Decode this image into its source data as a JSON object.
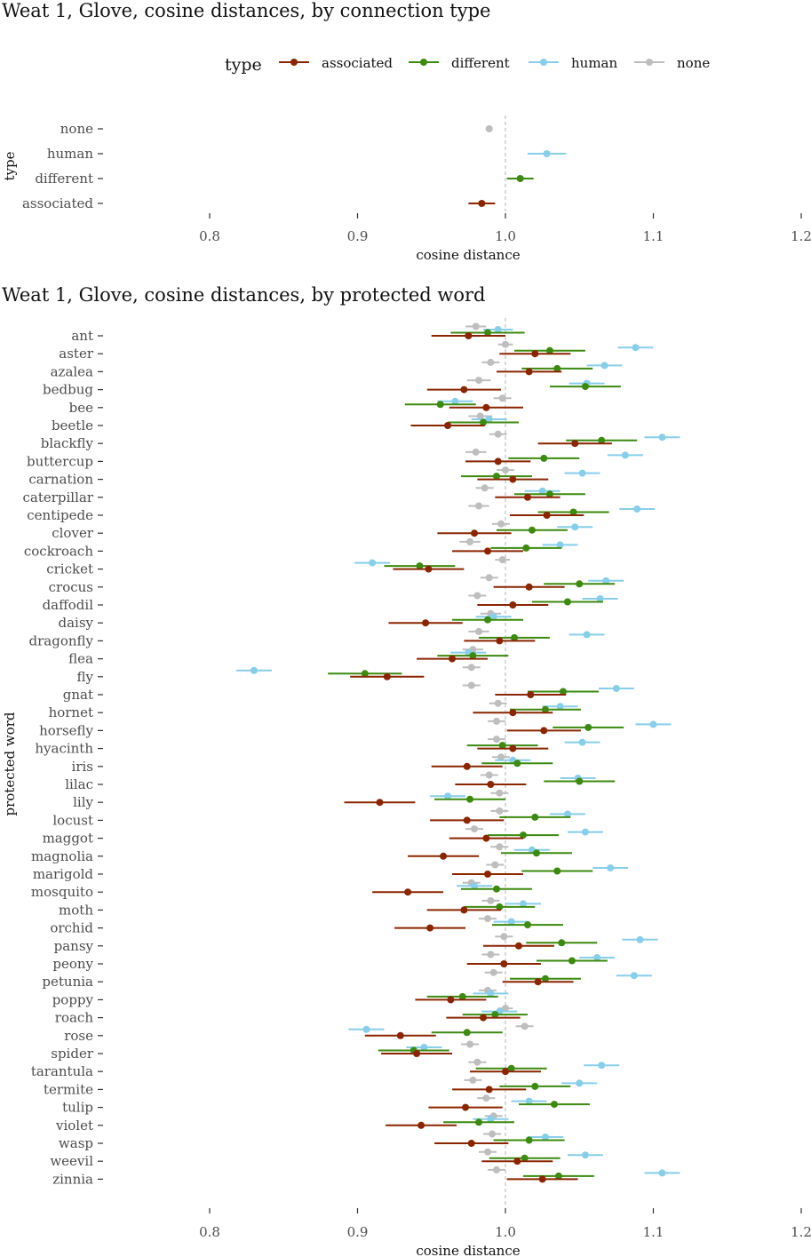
{
  "chart_data": [
    {
      "type": "scatter",
      "title": "Weat 1, Glove,  cosine distances, by connection type",
      "xlabel": "cosine distance",
      "ylabel": "type",
      "xlim": [
        0.8,
        1.2
      ],
      "xticks": [
        "0.8",
        "0.9",
        "1.0",
        "1.1",
        "1.2"
      ],
      "reference_x": 1.0,
      "categories": [
        "none",
        "human",
        "different",
        "associated"
      ],
      "legend": {
        "title": "type",
        "position": "top",
        "labels": [
          "associated",
          "different",
          "human",
          "none"
        ]
      },
      "colors": {
        "associated": "#8B2500",
        "different": "#3C8A0F",
        "human": "#87CEEB",
        "none": "#BEBEBE"
      },
      "series": [
        {
          "name": "none",
          "points": [
            {
              "y": "none",
              "x": 0.989,
              "lo": 0.989,
              "hi": 0.989
            }
          ]
        },
        {
          "name": "human",
          "points": [
            {
              "y": "human",
              "x": 1.028,
              "lo": 1.015,
              "hi": 1.041
            }
          ]
        },
        {
          "name": "different",
          "points": [
            {
              "y": "different",
              "x": 1.01,
              "lo": 1.001,
              "hi": 1.019
            }
          ]
        },
        {
          "name": "associated",
          "points": [
            {
              "y": "associated",
              "x": 0.984,
              "lo": 0.975,
              "hi": 0.993
            }
          ]
        }
      ]
    },
    {
      "type": "scatter",
      "title": "Weat 1, Glove, cosine distances, by protected word",
      "xlabel": "cosine distance",
      "ylabel": "protected word",
      "xlim": [
        0.8,
        1.2
      ],
      "xticks": [
        "0.8",
        "0.9",
        "1.0",
        "1.1",
        "1.2"
      ],
      "reference_x": 1.0,
      "categories": [
        "ant",
        "aster",
        "azalea",
        "bedbug",
        "bee",
        "beetle",
        "blackfly",
        "buttercup",
        "carnation",
        "caterpillar",
        "centipede",
        "clover",
        "cockroach",
        "cricket",
        "crocus",
        "daffodil",
        "daisy",
        "dragonfly",
        "flea",
        "fly",
        "gnat",
        "hornet",
        "horsefly",
        "hyacinth",
        "iris",
        "lilac",
        "lily",
        "locust",
        "maggot",
        "magnolia",
        "marigold",
        "mosquito",
        "moth",
        "orchid",
        "pansy",
        "peony",
        "petunia",
        "poppy",
        "roach",
        "rose",
        "spider",
        "tarantula",
        "termite",
        "tulip",
        "violet",
        "wasp",
        "weevil",
        "zinnia"
      ],
      "series_order": [
        "none",
        "human",
        "different",
        "associated"
      ],
      "series_offsets": [
        -10.5,
        -7,
        -3.5,
        0
      ],
      "colors": {
        "associated": "#8B2500",
        "different": "#3C8A0F",
        "human": "#87CEEB",
        "none": "#BEBEBE"
      },
      "points": [
        [
          [
            0.98,
            0.007
          ],
          [
            0.995,
            0.01
          ],
          [
            0.988,
            0.025
          ],
          [
            0.975,
            0.025
          ]
        ],
        [
          [
            1.0,
            0.005
          ],
          [
            1.088,
            0.012
          ],
          [
            1.03,
            0.024
          ],
          [
            1.02,
            0.024
          ]
        ],
        [
          [
            0.99,
            0.006
          ],
          [
            1.067,
            0.012
          ],
          [
            1.035,
            0.024
          ],
          [
            1.016,
            0.022
          ]
        ],
        [
          [
            0.982,
            0.008
          ],
          [
            1.055,
            0.012
          ],
          [
            1.054,
            0.024
          ],
          [
            0.972,
            0.025
          ]
        ],
        [
          [
            0.998,
            0.006
          ],
          [
            0.966,
            0.012
          ],
          [
            0.956,
            0.024
          ],
          [
            0.987,
            0.025
          ]
        ],
        [
          [
            0.983,
            0.008
          ],
          [
            0.989,
            0.012
          ],
          [
            0.985,
            0.024
          ],
          [
            0.961,
            0.025
          ]
        ],
        [
          [
            0.995,
            0.006
          ],
          [
            1.106,
            0.012
          ],
          [
            1.065,
            0.024
          ],
          [
            1.047,
            0.025
          ]
        ],
        [
          [
            0.98,
            0.007
          ],
          [
            1.081,
            0.012
          ],
          [
            1.026,
            0.024
          ],
          [
            0.995,
            0.022
          ]
        ],
        [
          [
            1.0,
            0.006
          ],
          [
            1.052,
            0.012
          ],
          [
            0.994,
            0.024
          ],
          [
            1.005,
            0.024
          ]
        ],
        [
          [
            0.986,
            0.006
          ],
          [
            1.025,
            0.012
          ],
          [
            1.03,
            0.024
          ],
          [
            1.015,
            0.022
          ]
        ],
        [
          [
            0.982,
            0.007
          ],
          [
            1.089,
            0.012
          ],
          [
            1.046,
            0.024
          ],
          [
            1.028,
            0.025
          ]
        ],
        [
          [
            0.997,
            0.006
          ],
          [
            1.047,
            0.012
          ],
          [
            1.018,
            0.024
          ],
          [
            0.979,
            0.025
          ]
        ],
        [
          [
            0.976,
            0.007
          ],
          [
            1.037,
            0.012
          ],
          [
            1.014,
            0.024
          ],
          [
            0.988,
            0.024
          ]
        ],
        [
          [
            0.998,
            0.005
          ],
          [
            0.91,
            0.012
          ],
          [
            0.942,
            0.024
          ],
          [
            0.948,
            0.024
          ]
        ],
        [
          [
            0.989,
            0.006
          ],
          [
            1.068,
            0.012
          ],
          [
            1.05,
            0.024
          ],
          [
            1.016,
            0.024
          ]
        ],
        [
          [
            0.981,
            0.006
          ],
          [
            1.064,
            0.012
          ],
          [
            1.042,
            0.024
          ],
          [
            1.005,
            0.024
          ]
        ],
        [
          [
            0.99,
            0.007
          ],
          [
            0.992,
            0.012
          ],
          [
            0.988,
            0.024
          ],
          [
            0.946,
            0.025
          ]
        ],
        [
          [
            0.982,
            0.007
          ],
          [
            1.055,
            0.012
          ],
          [
            1.006,
            0.024
          ],
          [
            0.996,
            0.024
          ]
        ],
        [
          [
            0.978,
            0.007
          ],
          [
            0.975,
            0.012
          ],
          [
            0.978,
            0.024
          ],
          [
            0.964,
            0.024
          ]
        ],
        [
          [
            0.977,
            0.006
          ],
          [
            0.83,
            0.012
          ],
          [
            0.905,
            0.025
          ],
          [
            0.92,
            0.025
          ]
        ],
        [
          [
            0.977,
            0.006
          ],
          [
            1.075,
            0.012
          ],
          [
            1.039,
            0.024
          ],
          [
            1.017,
            0.024
          ]
        ],
        [
          [
            0.995,
            0.006
          ],
          [
            1.037,
            0.012
          ],
          [
            1.027,
            0.024
          ],
          [
            1.005,
            0.027
          ]
        ],
        [
          [
            0.994,
            0.006
          ],
          [
            1.1,
            0.012
          ],
          [
            1.056,
            0.024
          ],
          [
            1.026,
            0.025
          ]
        ],
        [
          [
            0.994,
            0.006
          ],
          [
            1.052,
            0.012
          ],
          [
            0.998,
            0.024
          ],
          [
            1.005,
            0.024
          ]
        ],
        [
          [
            0.997,
            0.006
          ],
          [
            1.005,
            0.012
          ],
          [
            1.008,
            0.024
          ],
          [
            0.974,
            0.024
          ]
        ],
        [
          [
            0.989,
            0.006
          ],
          [
            1.049,
            0.012
          ],
          [
            1.05,
            0.024
          ],
          [
            0.99,
            0.024
          ]
        ],
        [
          [
            0.996,
            0.006
          ],
          [
            0.961,
            0.012
          ],
          [
            0.976,
            0.024
          ],
          [
            0.915,
            0.024
          ]
        ],
        [
          [
            0.996,
            0.006
          ],
          [
            1.042,
            0.012
          ],
          [
            1.02,
            0.024
          ],
          [
            0.974,
            0.025
          ]
        ],
        [
          [
            0.979,
            0.006
          ],
          [
            1.054,
            0.012
          ],
          [
            1.012,
            0.024
          ],
          [
            0.987,
            0.025
          ]
        ],
        [
          [
            0.996,
            0.006
          ],
          [
            1.018,
            0.012
          ],
          [
            1.021,
            0.024
          ],
          [
            0.958,
            0.024
          ]
        ],
        [
          [
            0.993,
            0.006
          ],
          [
            1.071,
            0.012
          ],
          [
            1.035,
            0.024
          ],
          [
            0.988,
            0.024
          ]
        ],
        [
          [
            0.977,
            0.006
          ],
          [
            0.979,
            0.012
          ],
          [
            0.994,
            0.024
          ],
          [
            0.934,
            0.024
          ]
        ],
        [
          [
            0.99,
            0.006
          ],
          [
            1.012,
            0.012
          ],
          [
            0.996,
            0.024
          ],
          [
            0.972,
            0.025
          ]
        ],
        [
          [
            0.988,
            0.006
          ],
          [
            1.004,
            0.012
          ],
          [
            1.015,
            0.024
          ],
          [
            0.949,
            0.024
          ]
        ],
        [
          [
            0.999,
            0.006
          ],
          [
            1.091,
            0.012
          ],
          [
            1.038,
            0.024
          ],
          [
            1.009,
            0.024
          ]
        ],
        [
          [
            0.99,
            0.006
          ],
          [
            1.062,
            0.012
          ],
          [
            1.045,
            0.024
          ],
          [
            0.999,
            0.025
          ]
        ],
        [
          [
            0.992,
            0.006
          ],
          [
            1.087,
            0.012
          ],
          [
            1.027,
            0.024
          ],
          [
            1.022,
            0.024
          ]
        ],
        [
          [
            0.988,
            0.006
          ],
          [
            0.99,
            0.012
          ],
          [
            0.971,
            0.024
          ],
          [
            0.963,
            0.024
          ]
        ],
        [
          [
            1.0,
            0.005
          ],
          [
            0.996,
            0.012
          ],
          [
            0.993,
            0.022
          ],
          [
            0.985,
            0.025
          ]
        ],
        [
          [
            1.013,
            0.006
          ],
          [
            0.906,
            0.012
          ],
          [
            0.974,
            0.024
          ],
          [
            0.929,
            0.024
          ]
        ],
        [
          [
            0.976,
            0.006
          ],
          [
            0.945,
            0.012
          ],
          [
            0.938,
            0.024
          ],
          [
            0.94,
            0.024
          ]
        ],
        [
          [
            0.981,
            0.006
          ],
          [
            1.065,
            0.012
          ],
          [
            1.004,
            0.024
          ],
          [
            1.0,
            0.024
          ]
        ],
        [
          [
            0.978,
            0.006
          ],
          [
            1.05,
            0.012
          ],
          [
            1.02,
            0.024
          ],
          [
            0.989,
            0.025
          ]
        ],
        [
          [
            0.987,
            0.006
          ],
          [
            1.016,
            0.012
          ],
          [
            1.033,
            0.024
          ],
          [
            0.973,
            0.025
          ]
        ],
        [
          [
            0.992,
            0.006
          ],
          [
            0.99,
            0.012
          ],
          [
            0.982,
            0.024
          ],
          [
            0.943,
            0.024
          ]
        ],
        [
          [
            0.991,
            0.006
          ],
          [
            1.027,
            0.012
          ],
          [
            1.016,
            0.024
          ],
          [
            0.977,
            0.025
          ]
        ],
        [
          [
            0.988,
            0.006
          ],
          [
            1.054,
            0.012
          ],
          [
            1.013,
            0.024
          ],
          [
            1.008,
            0.024
          ]
        ],
        [
          [
            0.994,
            0.006
          ],
          [
            1.106,
            0.012
          ],
          [
            1.036,
            0.024
          ],
          [
            1.025,
            0.024
          ]
        ]
      ]
    }
  ]
}
